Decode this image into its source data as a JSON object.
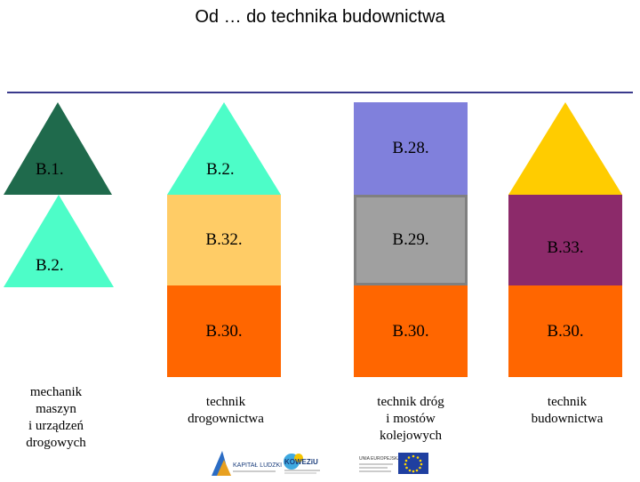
{
  "title": "Od … do technika budownictwa",
  "colors": {
    "dark_green": "#1f6a4c",
    "mint": "#4dfdc8",
    "lavender": "#8080dc",
    "light_orange": "#ffcc66",
    "orange": "#ff6600",
    "gray": "#a0a0a0",
    "purple": "#8c2a6a",
    "yellow": "#ffcc00",
    "rule": "#3a3a8c"
  },
  "col1": {
    "top_label": "B.1.",
    "bottom_label": "B.2.",
    "caption": [
      "mechanik",
      "maszyn",
      "i urządzeń",
      "drogowych"
    ]
  },
  "col2": {
    "roof_label": "B.2.",
    "mid_label": "B.32.",
    "base_label": "B.30.",
    "caption": [
      "technik",
      "drogownictwa"
    ]
  },
  "col3": {
    "top_label": "B.28.",
    "mid_label": "B.29.",
    "base_label": "B.30.",
    "caption": [
      "technik dróg",
      "i mostów",
      "kolejowych"
    ]
  },
  "col4": {
    "mid_label": "B.33.",
    "base_label": "B.30.",
    "caption": [
      "technik",
      "budownictwa"
    ]
  },
  "logos": {
    "kapital": "KAPITAŁ LUDZKI",
    "kowez": "KOWEZiU",
    "ue": "UNIA EUROPEJSKA"
  }
}
